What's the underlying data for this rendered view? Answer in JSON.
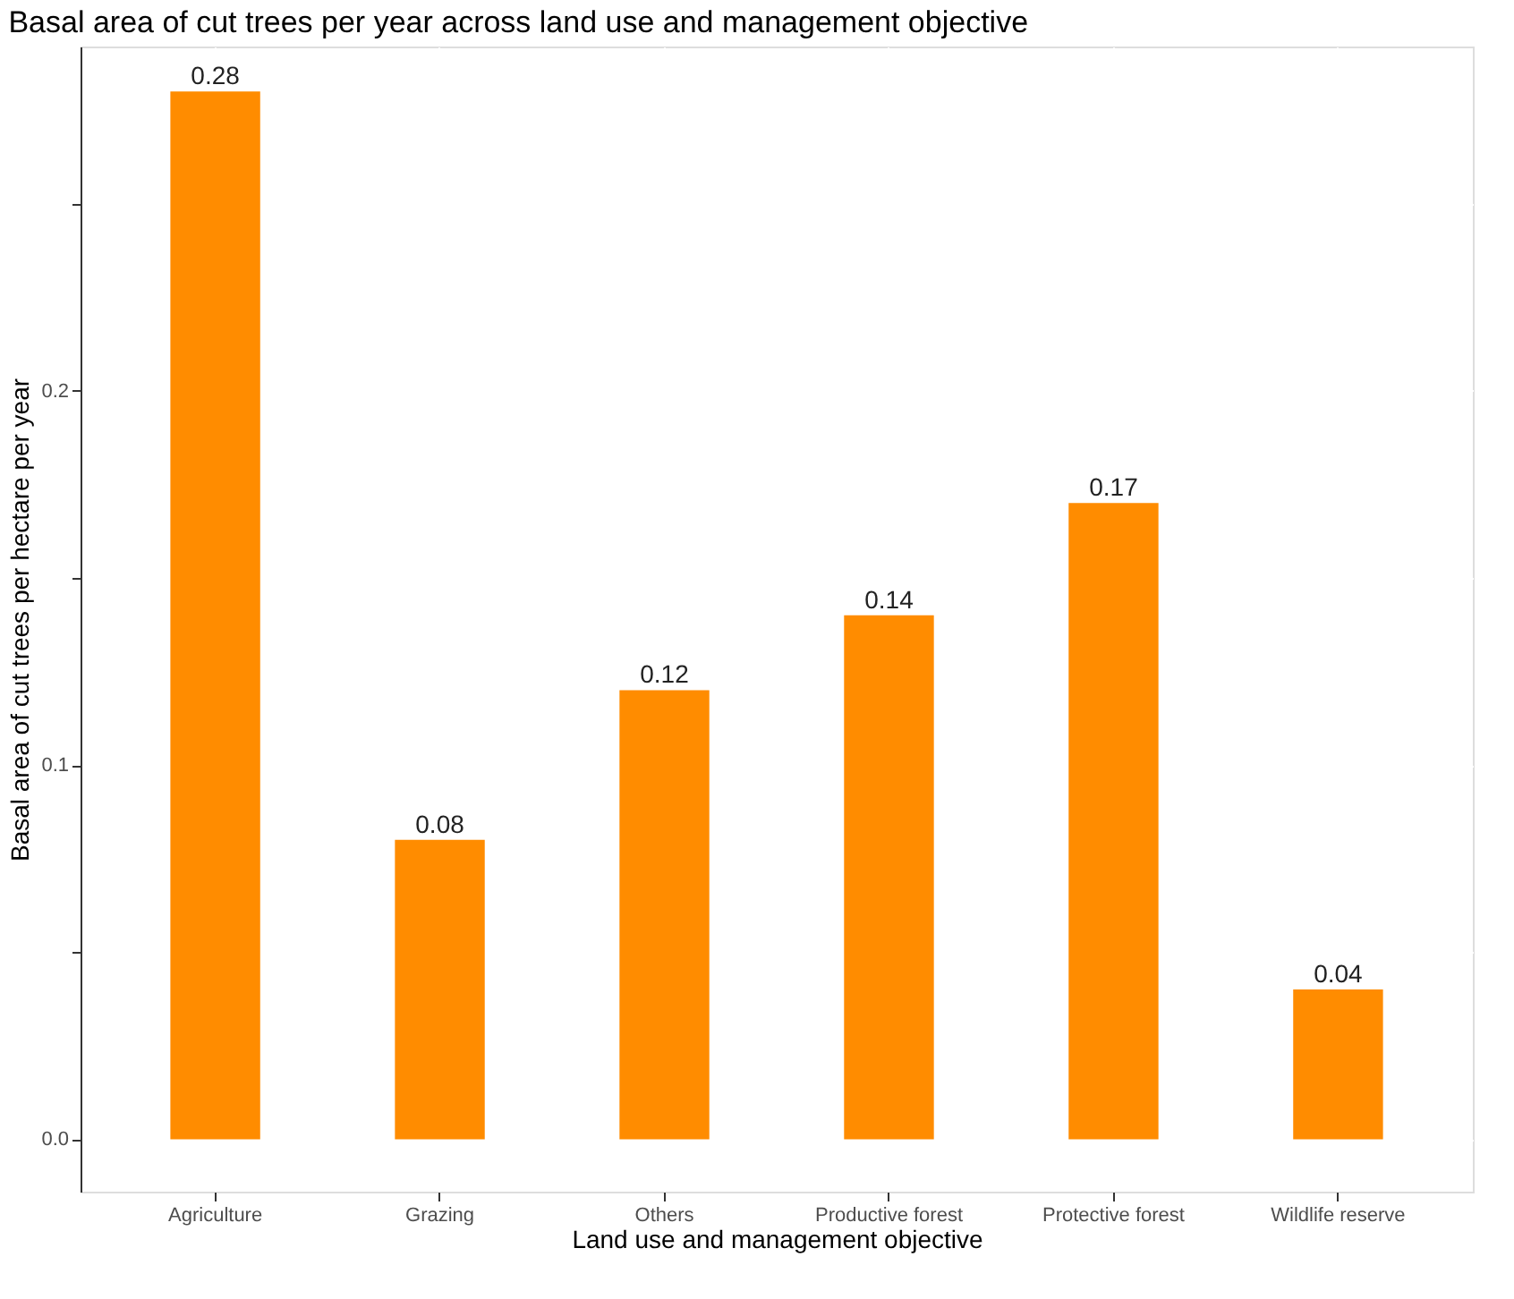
{
  "chart_data": {
    "type": "bar",
    "title": "Basal area of cut trees per year across land use and management objective",
    "xlabel": "Land use and management objective",
    "ylabel": "Basal area of cut trees per hectare per year",
    "categories": [
      "Agriculture",
      "Grazing",
      "Others",
      "Productive forest",
      "Protective forest",
      "Wildlife reserve"
    ],
    "values": [
      0.28,
      0.08,
      0.12,
      0.14,
      0.17,
      0.04
    ],
    "color": "#ff8c00",
    "ylim": [
      -0.014,
      0.292
    ],
    "yticks": [
      {
        "value": 0,
        "label": "0.0"
      },
      {
        "value": 0.05,
        "label": null
      },
      0.1,
      {
        "value": 0.15,
        "label": null
      },
      0.2,
      {
        "value": 0.25,
        "label": null
      }
    ],
    "grid": true,
    "data_labels": true
  }
}
